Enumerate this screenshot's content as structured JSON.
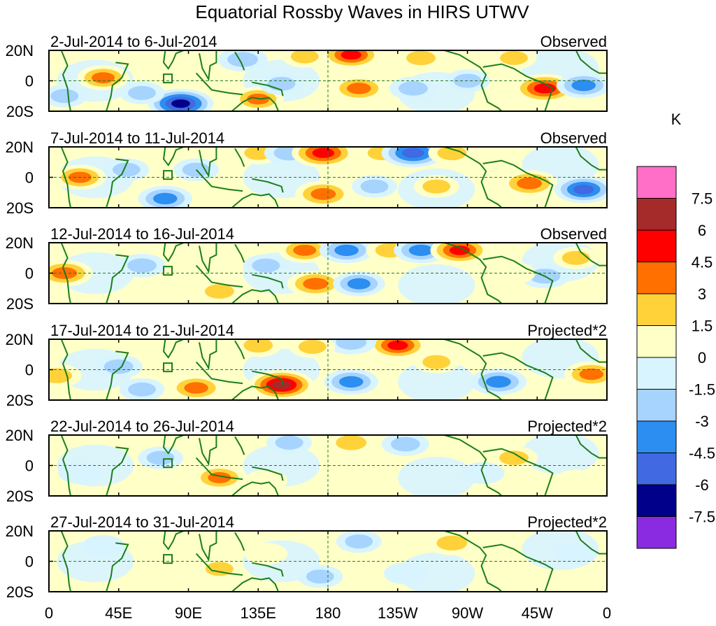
{
  "chart_data": {
    "type": "heatmap",
    "title": "Equatorial Rossby Waves in HIRS UTWV",
    "colorbar_unit": "K",
    "colorbar": {
      "levels": [
        "7.5",
        "6",
        "4.5",
        "3",
        "1.5",
        "0",
        "-1.5",
        "-3",
        "-4.5",
        "-6",
        "-7.5"
      ],
      "colors": [
        "#ff6ec7",
        "#a52a2a",
        "#ff0000",
        "#ff7000",
        "#ffd23a",
        "#ffffc8",
        "#d8f4ff",
        "#a7d3ff",
        "#2b8ef0",
        "#4169e1",
        "#00008b",
        "#8a2be2"
      ]
    },
    "x_ticks": [
      "0",
      "45E",
      "90E",
      "135E",
      "180",
      "135W",
      "90W",
      "45W",
      "0"
    ],
    "x_tick_lons": [
      0,
      45,
      90,
      135,
      180,
      225,
      270,
      315,
      360
    ],
    "y_ticks": [
      "20N",
      "0",
      "20S"
    ],
    "y_tick_lats": [
      20,
      0,
      -20
    ],
    "lat_range": [
      -20,
      20
    ],
    "lon_range": [
      0,
      360
    ],
    "panels": [
      {
        "date_range": "2-Jul-2014 to 6-Jul-2014",
        "label": "Observed",
        "anomalies": [
          {
            "lon": 35,
            "lat": 2,
            "v": 3.5
          },
          {
            "lon": 85,
            "lat": -15,
            "v": -6.5
          },
          {
            "lon": 60,
            "lat": -8,
            "v": -2
          },
          {
            "lon": 125,
            "lat": 14,
            "v": -3
          },
          {
            "lon": 135,
            "lat": -12,
            "v": 3.2
          },
          {
            "lon": 195,
            "lat": 17,
            "v": 5
          },
          {
            "lon": 200,
            "lat": -5,
            "v": 4
          },
          {
            "lon": 235,
            "lat": -5,
            "v": -2.5
          },
          {
            "lon": 270,
            "lat": 0,
            "v": -2
          },
          {
            "lon": 320,
            "lat": -5,
            "v": 6
          },
          {
            "lon": 345,
            "lat": -3,
            "v": -4
          },
          {
            "lon": 240,
            "lat": 15,
            "v": 2.5
          },
          {
            "lon": 150,
            "lat": -2,
            "v": -2
          },
          {
            "lon": 165,
            "lat": 16,
            "v": 2
          },
          {
            "lon": 300,
            "lat": 15,
            "v": 2
          },
          {
            "lon": 10,
            "lat": -10,
            "v": -2
          }
        ]
      },
      {
        "date_range": "7-Jul-2014 to 11-Jul-2014",
        "label": "Observed",
        "anomalies": [
          {
            "lon": 20,
            "lat": 0,
            "v": 3.5
          },
          {
            "lon": 75,
            "lat": -14,
            "v": -4
          },
          {
            "lon": 95,
            "lat": 5,
            "v": -2
          },
          {
            "lon": 135,
            "lat": 16,
            "v": 2
          },
          {
            "lon": 155,
            "lat": 16,
            "v": -3
          },
          {
            "lon": 177,
            "lat": 16,
            "v": 6
          },
          {
            "lon": 177,
            "lat": -11,
            "v": 4.5
          },
          {
            "lon": 215,
            "lat": 16,
            "v": 2.5
          },
          {
            "lon": 235,
            "lat": 16,
            "v": -6
          },
          {
            "lon": 260,
            "lat": 16,
            "v": 2.5
          },
          {
            "lon": 310,
            "lat": -4,
            "v": 4.5
          },
          {
            "lon": 345,
            "lat": -8,
            "v": -5
          },
          {
            "lon": 210,
            "lat": -6,
            "v": -2
          },
          {
            "lon": 250,
            "lat": -6,
            "v": 2
          },
          {
            "lon": 50,
            "lat": 5,
            "v": -2
          }
        ]
      },
      {
        "date_range": "12-Jul-2014 to 16-Jul-2014",
        "label": "Observed",
        "anomalies": [
          {
            "lon": 10,
            "lat": 0,
            "v": 4.5
          },
          {
            "lon": 60,
            "lat": 5,
            "v": -2.5
          },
          {
            "lon": 110,
            "lat": -12,
            "v": 2.5
          },
          {
            "lon": 165,
            "lat": 15,
            "v": 3.5
          },
          {
            "lon": 192,
            "lat": 15,
            "v": -4
          },
          {
            "lon": 220,
            "lat": 15,
            "v": 2.5
          },
          {
            "lon": 240,
            "lat": 15,
            "v": -4
          },
          {
            "lon": 265,
            "lat": 15,
            "v": 5
          },
          {
            "lon": 172,
            "lat": -7,
            "v": 4.5
          },
          {
            "lon": 200,
            "lat": -7,
            "v": -3.5
          },
          {
            "lon": 320,
            "lat": -2,
            "v": -3
          },
          {
            "lon": 340,
            "lat": 10,
            "v": 2
          },
          {
            "lon": 300,
            "lat": 0,
            "v": 1.5
          },
          {
            "lon": 140,
            "lat": 5,
            "v": -2
          }
        ]
      },
      {
        "date_range": "17-Jul-2014 to 21-Jul-2014",
        "label": "Projected*2",
        "anomalies": [
          {
            "lon": 45,
            "lat": 2,
            "v": -2.5
          },
          {
            "lon": 95,
            "lat": -12,
            "v": 4
          },
          {
            "lon": 150,
            "lat": -10,
            "v": 6.5
          },
          {
            "lon": 195,
            "lat": -8,
            "v": -4
          },
          {
            "lon": 225,
            "lat": 16,
            "v": 5
          },
          {
            "lon": 195,
            "lat": 18,
            "v": -3
          },
          {
            "lon": 290,
            "lat": -8,
            "v": -4.5
          },
          {
            "lon": 350,
            "lat": -3,
            "v": 4
          },
          {
            "lon": 5,
            "lat": -4,
            "v": 3
          },
          {
            "lon": 135,
            "lat": 16,
            "v": 2.5
          },
          {
            "lon": 250,
            "lat": 5,
            "v": 2
          },
          {
            "lon": 170,
            "lat": 15,
            "v": 2
          },
          {
            "lon": 60,
            "lat": -13,
            "v": -2
          }
        ]
      },
      {
        "date_range": "22-Jul-2014 to 26-Jul-2014",
        "label": "Projected*2",
        "anomalies": [
          {
            "lon": 110,
            "lat": -8,
            "v": 3.5
          },
          {
            "lon": 72,
            "lat": 5,
            "v": -2
          },
          {
            "lon": 155,
            "lat": 15,
            "v": -2
          },
          {
            "lon": 195,
            "lat": 15,
            "v": 3
          },
          {
            "lon": 230,
            "lat": 14,
            "v": -2.5
          },
          {
            "lon": 300,
            "lat": 5,
            "v": 2.5
          },
          {
            "lon": 280,
            "lat": -5,
            "v": -1.5
          },
          {
            "lon": 20,
            "lat": -5,
            "v": -1.5
          },
          {
            "lon": 140,
            "lat": -10,
            "v": 1.5
          },
          {
            "lon": 340,
            "lat": -10,
            "v": 1.5
          }
        ]
      },
      {
        "date_range": "27-Jul-2014 to 31-Jul-2014",
        "label": "Projected*2",
        "anomalies": [
          {
            "lon": 260,
            "lat": 12,
            "v": 3
          },
          {
            "lon": 200,
            "lat": 13,
            "v": -2
          },
          {
            "lon": 175,
            "lat": -10,
            "v": -2
          },
          {
            "lon": 110,
            "lat": -5,
            "v": 2
          },
          {
            "lon": 35,
            "lat": 10,
            "v": -1.5
          },
          {
            "lon": 300,
            "lat": -5,
            "v": 1.5
          },
          {
            "lon": 340,
            "lat": 5,
            "v": -1.5
          },
          {
            "lon": 230,
            "lat": -8,
            "v": -1.5
          },
          {
            "lon": 140,
            "lat": 5,
            "v": 1.5
          }
        ]
      }
    ]
  }
}
